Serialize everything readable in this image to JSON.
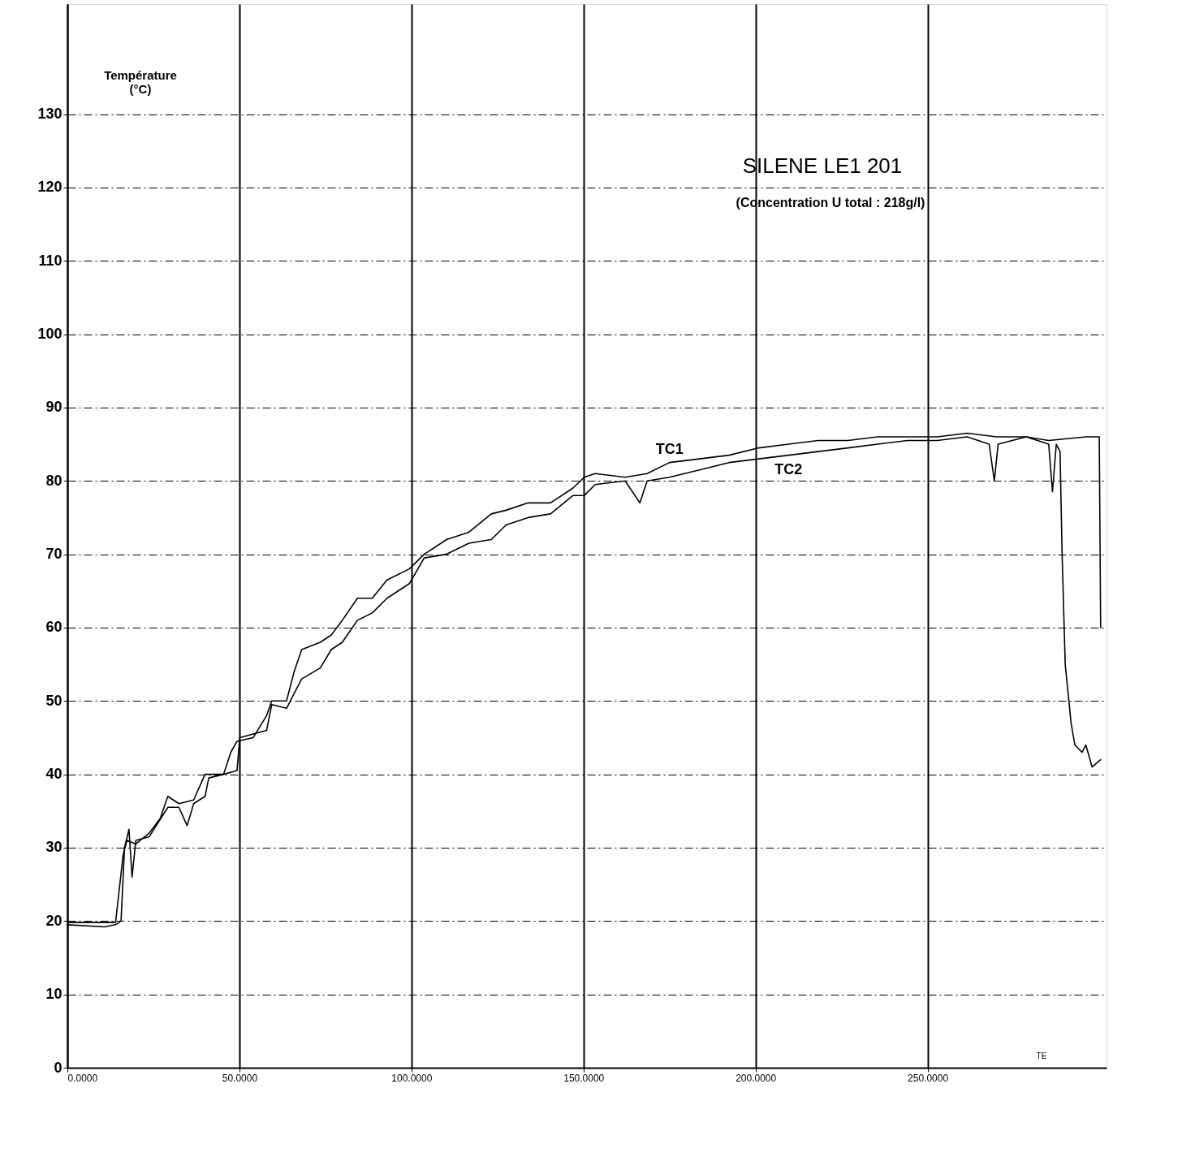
{
  "chart_data": {
    "type": "line",
    "title": "SILENE LE1 201",
    "subtitle": "(Concentration U total : 218g/l)",
    "ylabel": "Température\n(°C)",
    "annotations": [
      "TE"
    ],
    "xlim": [
      0,
      302
    ],
    "ylim": [
      0,
      145
    ],
    "xticks": [
      {
        "value": 0,
        "label": "0.0000"
      },
      {
        "value": 50,
        "label": "50.0000"
      },
      {
        "value": 100,
        "label": "100.0000"
      },
      {
        "value": 150,
        "label": "150.0000"
      },
      {
        "value": 200,
        "label": "200.0000"
      },
      {
        "value": 250,
        "label": "250.0000"
      }
    ],
    "yticks": [
      0,
      10,
      20,
      30,
      40,
      50,
      60,
      70,
      80,
      90,
      100,
      110,
      120,
      130
    ],
    "grid": true,
    "legend": false,
    "line_style": "solid",
    "marker": "none",
    "series": [
      {
        "name": "TC1",
        "color": "#000000",
        "x": [
          0,
          14.0,
          16.2,
          17.3,
          19.9,
          23.8,
          27.0,
          29.2,
          32.4,
          36.7,
          40.0,
          45.4,
          47.5,
          49.3,
          54.0,
          57.9,
          59.4,
          63.7,
          65.9,
          68.1,
          73.5,
          76.7,
          79.9,
          84.3,
          88.6,
          92.9,
          99.4,
          103.7,
          110.2,
          116.7,
          123.2,
          127.5,
          133.9,
          140.4,
          146.9,
          150.2,
          153.4,
          162.1,
          168.5,
          175.0,
          183.7,
          192.3,
          201.0,
          209.6,
          218.2,
          226.9,
          235.5,
          244.2,
          252.8,
          261.5,
          270.1,
          278.7,
          285.2,
          296.0,
          299.9,
          300.3
        ],
        "values": [
          19.8,
          19.8,
          29,
          31,
          30.5,
          32,
          34,
          37,
          36,
          36.5,
          40,
          40,
          43,
          44.5,
          45,
          48,
          50,
          50,
          54,
          57,
          58,
          59,
          61,
          64,
          64,
          66.5,
          68,
          70,
          72,
          73,
          75.5,
          76,
          77,
          77,
          79,
          80.5,
          81,
          80.5,
          81,
          82.5,
          83,
          83.5,
          84.5,
          85,
          85.5,
          85.5,
          86,
          86,
          86,
          86.5,
          86,
          86,
          85.5,
          86,
          86,
          60
        ]
      },
      {
        "name": "TC2",
        "color": "#000000",
        "x": [
          0,
          10.8,
          14.0,
          15.6,
          16.6,
          17.9,
          18.8,
          19.9,
          23.8,
          29.2,
          32.4,
          34.8,
          36.7,
          40.0,
          41.1,
          45.4,
          49.3,
          50.1,
          54.0,
          57.9,
          59.4,
          63.7,
          65.9,
          68.1,
          73.5,
          76.7,
          79.9,
          84.3,
          88.6,
          92.9,
          99.4,
          103.7,
          110.2,
          116.7,
          123.2,
          127.5,
          133.9,
          140.4,
          146.9,
          150.2,
          153.4,
          162.1,
          166.4,
          168.5,
          175.0,
          183.7,
          192.3,
          201.0,
          209.6,
          218.2,
          226.9,
          235.5,
          244.2,
          252.8,
          261.5,
          267.9,
          269.4,
          270.5,
          278.7,
          285.2,
          286.3,
          287.4,
          288.5,
          289.1,
          290.0,
          291.7,
          292.8,
          294.9,
          296.0,
          297.8,
          300.3
        ],
        "values": [
          19.5,
          19.2,
          19.5,
          20,
          30,
          32.5,
          26,
          31,
          31.5,
          35.5,
          35.5,
          33,
          36,
          37,
          39.5,
          40,
          40.5,
          45,
          45.5,
          46,
          49.5,
          49,
          51,
          53,
          54.5,
          57,
          58,
          61,
          62,
          64,
          66,
          69.5,
          70,
          71.5,
          72,
          74,
          75,
          75.5,
          78,
          78,
          79.5,
          80,
          77,
          80,
          80.5,
          81.5,
          82.5,
          83,
          83.5,
          84,
          84.5,
          85,
          85.5,
          85.5,
          86,
          85,
          80,
          85,
          86,
          85,
          78.5,
          85,
          84,
          70,
          55,
          47,
          44,
          43,
          44,
          41,
          42
        ]
      }
    ]
  }
}
